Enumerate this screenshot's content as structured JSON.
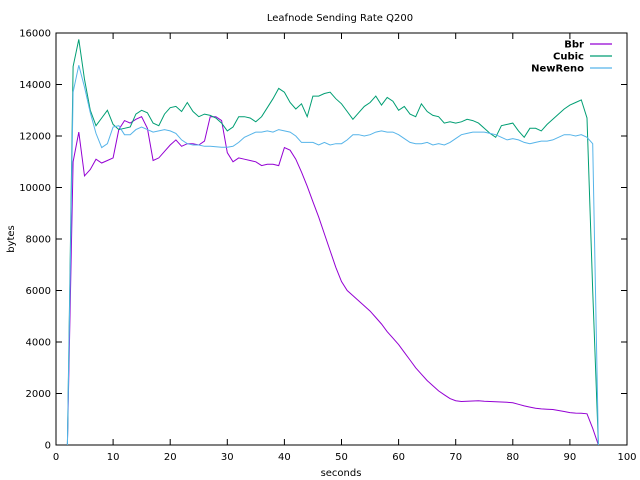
{
  "chart_data": {
    "type": "line",
    "title": "Leafnode Sending Rate Q200",
    "xlabel": "seconds",
    "ylabel": "bytes",
    "xlim": [
      0,
      100
    ],
    "ylim": [
      0,
      16000
    ],
    "x_ticks": [
      0,
      10,
      20,
      30,
      40,
      50,
      60,
      70,
      80,
      90,
      100
    ],
    "y_ticks": [
      0,
      2000,
      4000,
      6000,
      8000,
      10000,
      12000,
      14000,
      16000
    ],
    "grid": false,
    "legend_position": "top-right",
    "series": [
      {
        "name": "Bbr",
        "color": "#9400d3",
        "points": [
          [
            2,
            0
          ],
          [
            3,
            11000
          ],
          [
            4,
            12150
          ],
          [
            5,
            10450
          ],
          [
            6,
            10700
          ],
          [
            7,
            11100
          ],
          [
            8,
            10950
          ],
          [
            9,
            11050
          ],
          [
            10,
            11150
          ],
          [
            11,
            12250
          ],
          [
            12,
            12600
          ],
          [
            13,
            12500
          ],
          [
            14,
            12650
          ],
          [
            15,
            12750
          ],
          [
            16,
            12300
          ],
          [
            17,
            11050
          ],
          [
            18,
            11150
          ],
          [
            19,
            11400
          ],
          [
            20,
            11650
          ],
          [
            21,
            11850
          ],
          [
            22,
            11600
          ],
          [
            23,
            11700
          ],
          [
            24,
            11700
          ],
          [
            25,
            11650
          ],
          [
            26,
            11800
          ],
          [
            27,
            12750
          ],
          [
            28,
            12750
          ],
          [
            29,
            12600
          ],
          [
            30,
            11350
          ],
          [
            31,
            11000
          ],
          [
            32,
            11150
          ],
          [
            33,
            11100
          ],
          [
            34,
            11050
          ],
          [
            35,
            11000
          ],
          [
            36,
            10850
          ],
          [
            37,
            10900
          ],
          [
            38,
            10900
          ],
          [
            39,
            10850
          ],
          [
            40,
            11550
          ],
          [
            41,
            11450
          ],
          [
            42,
            11100
          ],
          [
            43,
            10600
          ],
          [
            44,
            10050
          ],
          [
            45,
            9450
          ],
          [
            46,
            8850
          ],
          [
            47,
            8200
          ],
          [
            48,
            7550
          ],
          [
            49,
            6900
          ],
          [
            50,
            6350
          ],
          [
            51,
            6000
          ],
          [
            52,
            5800
          ],
          [
            53,
            5600
          ],
          [
            54,
            5400
          ],
          [
            55,
            5200
          ],
          [
            56,
            4950
          ],
          [
            57,
            4700
          ],
          [
            58,
            4400
          ],
          [
            59,
            4150
          ],
          [
            60,
            3900
          ],
          [
            61,
            3600
          ],
          [
            62,
            3300
          ],
          [
            63,
            3000
          ],
          [
            64,
            2750
          ],
          [
            65,
            2500
          ],
          [
            66,
            2300
          ],
          [
            67,
            2100
          ],
          [
            68,
            1950
          ],
          [
            69,
            1800
          ],
          [
            70,
            1720
          ],
          [
            71,
            1690
          ],
          [
            72,
            1700
          ],
          [
            73,
            1710
          ],
          [
            74,
            1720
          ],
          [
            75,
            1700
          ],
          [
            76,
            1690
          ],
          [
            77,
            1680
          ],
          [
            78,
            1670
          ],
          [
            79,
            1660
          ],
          [
            80,
            1640
          ],
          [
            81,
            1580
          ],
          [
            82,
            1520
          ],
          [
            83,
            1470
          ],
          [
            84,
            1430
          ],
          [
            85,
            1400
          ],
          [
            86,
            1390
          ],
          [
            87,
            1380
          ],
          [
            88,
            1340
          ],
          [
            89,
            1300
          ],
          [
            90,
            1260
          ],
          [
            91,
            1240
          ],
          [
            92,
            1230
          ],
          [
            93,
            1210
          ],
          [
            94,
            650
          ],
          [
            95,
            0
          ]
        ]
      },
      {
        "name": "Cubic",
        "color": "#009e73",
        "points": [
          [
            2,
            0
          ],
          [
            3,
            14700
          ],
          [
            4,
            15750
          ],
          [
            5,
            14200
          ],
          [
            6,
            13000
          ],
          [
            7,
            12400
          ],
          [
            8,
            12700
          ],
          [
            9,
            13000
          ],
          [
            10,
            12450
          ],
          [
            11,
            12250
          ],
          [
            12,
            12300
          ],
          [
            13,
            12350
          ],
          [
            14,
            12850
          ],
          [
            15,
            13000
          ],
          [
            16,
            12900
          ],
          [
            17,
            12500
          ],
          [
            18,
            12400
          ],
          [
            19,
            12850
          ],
          [
            20,
            13100
          ],
          [
            21,
            13150
          ],
          [
            22,
            12950
          ],
          [
            23,
            13300
          ],
          [
            24,
            12950
          ],
          [
            25,
            12750
          ],
          [
            26,
            12850
          ],
          [
            27,
            12800
          ],
          [
            28,
            12700
          ],
          [
            29,
            12500
          ],
          [
            30,
            12200
          ],
          [
            31,
            12350
          ],
          [
            32,
            12750
          ],
          [
            33,
            12750
          ],
          [
            34,
            12700
          ],
          [
            35,
            12550
          ],
          [
            36,
            12750
          ],
          [
            37,
            13100
          ],
          [
            38,
            13450
          ],
          [
            39,
            13850
          ],
          [
            40,
            13700
          ],
          [
            41,
            13300
          ],
          [
            42,
            13050
          ],
          [
            43,
            13250
          ],
          [
            44,
            12750
          ],
          [
            45,
            13550
          ],
          [
            46,
            13550
          ],
          [
            47,
            13650
          ],
          [
            48,
            13700
          ],
          [
            49,
            13450
          ],
          [
            50,
            13250
          ],
          [
            51,
            12950
          ],
          [
            52,
            12650
          ],
          [
            53,
            12900
          ],
          [
            54,
            13150
          ],
          [
            55,
            13300
          ],
          [
            56,
            13550
          ],
          [
            57,
            13200
          ],
          [
            58,
            13500
          ],
          [
            59,
            13350
          ],
          [
            60,
            13000
          ],
          [
            61,
            13150
          ],
          [
            62,
            12850
          ],
          [
            63,
            12750
          ],
          [
            64,
            13250
          ],
          [
            65,
            12950
          ],
          [
            66,
            12800
          ],
          [
            67,
            12750
          ],
          [
            68,
            12500
          ],
          [
            69,
            12550
          ],
          [
            70,
            12500
          ],
          [
            71,
            12550
          ],
          [
            72,
            12650
          ],
          [
            73,
            12600
          ],
          [
            74,
            12500
          ],
          [
            75,
            12300
          ],
          [
            76,
            12100
          ],
          [
            77,
            11950
          ],
          [
            78,
            12400
          ],
          [
            79,
            12450
          ],
          [
            80,
            12500
          ],
          [
            81,
            12200
          ],
          [
            82,
            11950
          ],
          [
            83,
            12300
          ],
          [
            84,
            12300
          ],
          [
            85,
            12200
          ],
          [
            86,
            12450
          ],
          [
            87,
            12650
          ],
          [
            88,
            12850
          ],
          [
            89,
            13050
          ],
          [
            90,
            13200
          ],
          [
            91,
            13300
          ],
          [
            92,
            13400
          ],
          [
            93,
            12700
          ],
          [
            94,
            6000
          ],
          [
            95,
            0
          ]
        ]
      },
      {
        "name": "NewReno",
        "color": "#56b4e9",
        "points": [
          [
            2,
            0
          ],
          [
            3,
            13700
          ],
          [
            4,
            14750
          ],
          [
            5,
            13900
          ],
          [
            6,
            12900
          ],
          [
            7,
            12100
          ],
          [
            8,
            11550
          ],
          [
            9,
            11700
          ],
          [
            10,
            12350
          ],
          [
            11,
            12400
          ],
          [
            12,
            12050
          ],
          [
            13,
            12050
          ],
          [
            14,
            12250
          ],
          [
            15,
            12350
          ],
          [
            16,
            12250
          ],
          [
            17,
            12150
          ],
          [
            18,
            12200
          ],
          [
            19,
            12250
          ],
          [
            20,
            12200
          ],
          [
            21,
            12100
          ],
          [
            22,
            11850
          ],
          [
            23,
            11700
          ],
          [
            24,
            11650
          ],
          [
            25,
            11650
          ],
          [
            26,
            11600
          ],
          [
            27,
            11600
          ],
          [
            28,
            11580
          ],
          [
            29,
            11560
          ],
          [
            30,
            11560
          ],
          [
            31,
            11600
          ],
          [
            32,
            11750
          ],
          [
            33,
            11950
          ],
          [
            34,
            12050
          ],
          [
            35,
            12150
          ],
          [
            36,
            12150
          ],
          [
            37,
            12200
          ],
          [
            38,
            12150
          ],
          [
            39,
            12250
          ],
          [
            40,
            12200
          ],
          [
            41,
            12150
          ],
          [
            42,
            12000
          ],
          [
            43,
            11750
          ],
          [
            44,
            11750
          ],
          [
            45,
            11750
          ],
          [
            46,
            11650
          ],
          [
            47,
            11750
          ],
          [
            48,
            11650
          ],
          [
            49,
            11700
          ],
          [
            50,
            11700
          ],
          [
            51,
            11850
          ],
          [
            52,
            12050
          ],
          [
            53,
            12050
          ],
          [
            54,
            12000
          ],
          [
            55,
            12050
          ],
          [
            56,
            12150
          ],
          [
            57,
            12200
          ],
          [
            58,
            12150
          ],
          [
            59,
            12150
          ],
          [
            60,
            12050
          ],
          [
            61,
            11900
          ],
          [
            62,
            11750
          ],
          [
            63,
            11700
          ],
          [
            64,
            11700
          ],
          [
            65,
            11750
          ],
          [
            66,
            11650
          ],
          [
            67,
            11700
          ],
          [
            68,
            11650
          ],
          [
            69,
            11750
          ],
          [
            70,
            11900
          ],
          [
            71,
            12050
          ],
          [
            72,
            12100
          ],
          [
            73,
            12150
          ],
          [
            74,
            12150
          ],
          [
            75,
            12150
          ],
          [
            76,
            12100
          ],
          [
            77,
            12050
          ],
          [
            78,
            11950
          ],
          [
            79,
            11850
          ],
          [
            80,
            11900
          ],
          [
            81,
            11850
          ],
          [
            82,
            11750
          ],
          [
            83,
            11700
          ],
          [
            84,
            11750
          ],
          [
            85,
            11800
          ],
          [
            86,
            11800
          ],
          [
            87,
            11850
          ],
          [
            88,
            11950
          ],
          [
            89,
            12050
          ],
          [
            90,
            12050
          ],
          [
            91,
            12000
          ],
          [
            92,
            12050
          ],
          [
            93,
            11950
          ],
          [
            94,
            11700
          ],
          [
            95,
            0
          ]
        ]
      }
    ]
  }
}
